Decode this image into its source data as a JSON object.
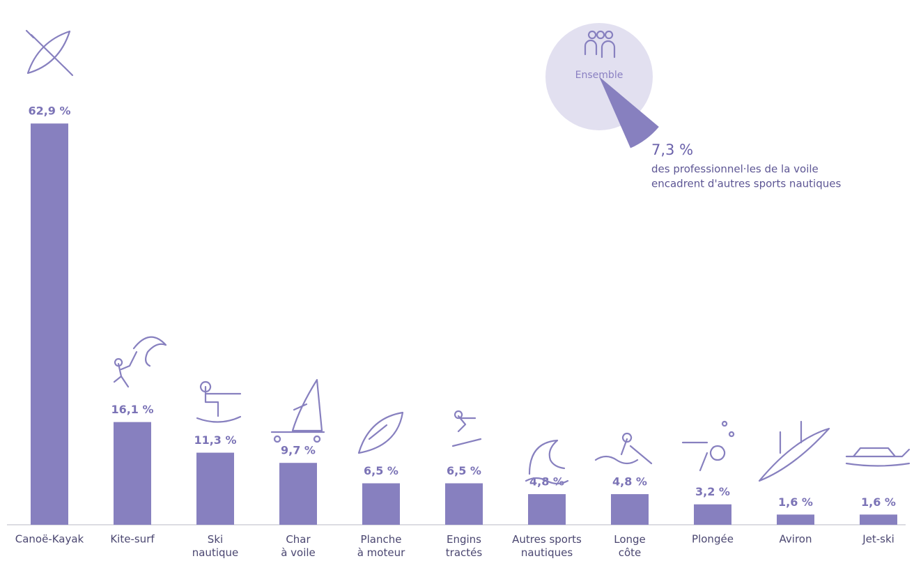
{
  "chart_data": [
    {
      "type": "bar",
      "categories": [
        "Canoë-Kayak",
        "Kite-surf",
        "Ski\nnautique",
        "Char\nà voile",
        "Planche\nà moteur",
        "Engins\ntractés",
        "Autres sports\nnautiques",
        "Longe\ncôte",
        "Plongée",
        "Aviron",
        "Jet-ski"
      ],
      "values": [
        62.9,
        16.1,
        11.3,
        9.7,
        6.5,
        6.5,
        4.8,
        4.8,
        3.2,
        1.6,
        1.6
      ],
      "value_labels": [
        "62,9 %",
        "16,1 %",
        "11,3 %",
        "9,7 %",
        "6,5 %",
        "6,5 %",
        "4,8 %",
        "4,8 %",
        "3,2 %",
        "1,6 %",
        "1,6 %"
      ],
      "color": "#8780bf",
      "ylim": [
        0,
        65
      ]
    },
    {
      "type": "pie",
      "center_label": "Ensemble",
      "values": [
        7.3
      ],
      "value_labels": [
        "7,3 %"
      ],
      "annotation": [
        "des professionnel·les de la voile",
        "encadrent d'autres sports nautiques"
      ],
      "color": "#8780bf"
    }
  ]
}
